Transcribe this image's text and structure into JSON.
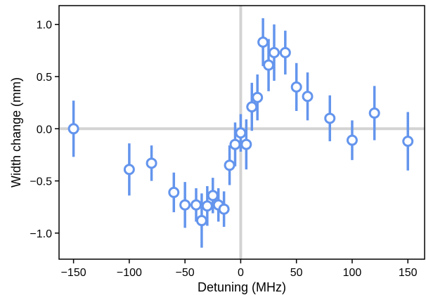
{
  "chart_data": {
    "type": "scatter",
    "xlabel": "Detuning (MHz)",
    "ylabel": "Width change (mm)",
    "xlim": [
      -163,
      165
    ],
    "ylim": [
      -1.25,
      1.18
    ],
    "x_ticks": [
      -150,
      -100,
      -50,
      0,
      50,
      100,
      150
    ],
    "y_ticks": [
      -1.0,
      -0.5,
      0.0,
      0.5,
      1.0
    ],
    "x_tick_labels": [
      "−150",
      "−100",
      "−50",
      "0",
      "50",
      "100",
      "150"
    ],
    "y_tick_labels": [
      "−1.0",
      "−0.5",
      "0.0",
      "0.5",
      "1.0"
    ],
    "reference_lines": {
      "x": 0,
      "y": 0,
      "color": "#d3d3d3"
    },
    "grid": false,
    "legend": false,
    "marker": {
      "style": "open-circle",
      "color": "#6495ed",
      "fill": "#ffffff"
    },
    "points": [
      {
        "x": -150,
        "y": 0.0,
        "err": 0.27
      },
      {
        "x": -100,
        "y": -0.39,
        "err": 0.25
      },
      {
        "x": -80,
        "y": -0.33,
        "err": 0.17
      },
      {
        "x": -60,
        "y": -0.61,
        "err": 0.19
      },
      {
        "x": -50,
        "y": -0.73,
        "err": 0.22
      },
      {
        "x": -40,
        "y": -0.73,
        "err": 0.16
      },
      {
        "x": -35,
        "y": -0.88,
        "err": 0.26
      },
      {
        "x": -30,
        "y": -0.74,
        "err": 0.19
      },
      {
        "x": -25,
        "y": -0.64,
        "err": 0.17
      },
      {
        "x": -20,
        "y": -0.73,
        "err": 0.16
      },
      {
        "x": -15,
        "y": -0.77,
        "err": 0.17
      },
      {
        "x": -10,
        "y": -0.35,
        "err": 0.19
      },
      {
        "x": -5,
        "y": -0.15,
        "err": 0.21
      },
      {
        "x": 0,
        "y": -0.04,
        "err": 0.18
      },
      {
        "x": 5,
        "y": -0.15,
        "err": 0.24
      },
      {
        "x": 10,
        "y": 0.21,
        "err": 0.23
      },
      {
        "x": 15,
        "y": 0.3,
        "err": 0.22
      },
      {
        "x": 20,
        "y": 0.83,
        "err": 0.23
      },
      {
        "x": 25,
        "y": 0.61,
        "err": 0.25
      },
      {
        "x": 30,
        "y": 0.73,
        "err": 0.27
      },
      {
        "x": 40,
        "y": 0.73,
        "err": 0.21
      },
      {
        "x": 50,
        "y": 0.4,
        "err": 0.23
      },
      {
        "x": 60,
        "y": 0.31,
        "err": 0.23
      },
      {
        "x": 80,
        "y": 0.1,
        "err": 0.22
      },
      {
        "x": 100,
        "y": -0.11,
        "err": 0.19
      },
      {
        "x": 120,
        "y": 0.15,
        "err": 0.26
      },
      {
        "x": 150,
        "y": -0.12,
        "err": 0.28
      }
    ]
  }
}
